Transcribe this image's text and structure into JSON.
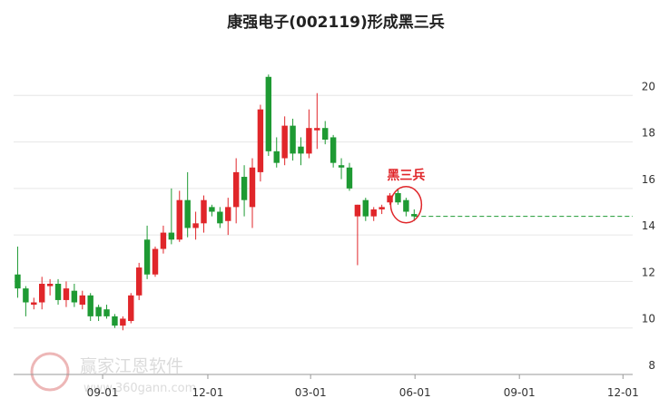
{
  "chart_data": {
    "type": "candlestick",
    "title": "康强电子(002119)形成黑三兵",
    "annotation": "黑三兵",
    "watermark": "赢家江恩软件",
    "watermark_url": "www.360gann.com",
    "up_color": "#e0262a",
    "down_color": "#1e9a33",
    "reference_line": 14.8,
    "open": [
      12.3,
      11.7,
      11.0,
      11.1,
      11.8,
      11.9,
      11.2,
      11.6,
      11.0,
      11.4,
      10.9,
      10.8,
      10.5,
      10.1,
      10.3,
      11.4,
      13.8,
      12.3,
      13.4,
      14.1,
      13.8,
      15.5,
      14.3,
      14.5,
      15.2,
      15.0,
      14.6,
      15.2,
      16.5,
      15.2,
      16.7,
      20.8,
      17.6,
      17.3,
      18.7,
      17.8,
      17.5,
      18.5,
      18.6,
      18.2,
      17.0,
      16.9,
      14.8,
      15.5,
      14.8,
      15.1,
      15.4,
      15.8,
      15.5,
      14.9
    ],
    "high": [
      13.5,
      11.8,
      11.3,
      12.2,
      12.1,
      12.1,
      12.0,
      11.9,
      11.6,
      11.5,
      11.0,
      11.0,
      10.6,
      10.5,
      11.5,
      12.8,
      14.4,
      13.5,
      14.4,
      16.0,
      15.9,
      16.7,
      15.0,
      15.7,
      15.3,
      15.2,
      15.6,
      17.3,
      17.0,
      17.3,
      19.6,
      20.9,
      18.2,
      19.1,
      19.0,
      18.2,
      19.4,
      20.1,
      18.9,
      18.3,
      17.3,
      17.1,
      15.3,
      15.6,
      15.2,
      15.3,
      15.8,
      16.0,
      15.6,
      15.1
    ],
    "low": [
      11.3,
      10.5,
      10.8,
      10.8,
      11.4,
      11.0,
      10.9,
      10.9,
      10.8,
      10.3,
      10.3,
      10.4,
      10.0,
      9.9,
      10.2,
      11.2,
      12.1,
      12.2,
      13.2,
      13.6,
      13.7,
      13.9,
      13.8,
      14.1,
      14.8,
      14.3,
      14.0,
      14.5,
      14.8,
      14.3,
      16.3,
      17.4,
      16.9,
      17.0,
      17.2,
      17.0,
      17.3,
      17.7,
      17.9,
      16.9,
      16.4,
      15.9,
      12.7,
      14.6,
      14.6,
      14.9,
      15.3,
      15.3,
      14.8,
      14.6
    ],
    "close": [
      11.7,
      11.1,
      11.1,
      11.9,
      11.9,
      11.2,
      11.7,
      11.1,
      11.4,
      10.5,
      10.5,
      10.5,
      10.1,
      10.4,
      11.4,
      12.6,
      12.3,
      13.4,
      14.1,
      13.8,
      15.5,
      14.3,
      14.5,
      15.5,
      15.0,
      14.5,
      15.2,
      16.7,
      15.5,
      16.9,
      19.4,
      17.6,
      17.1,
      18.7,
      17.5,
      17.5,
      18.6,
      18.6,
      18.1,
      17.1,
      16.9,
      16.0,
      15.3,
      14.8,
      15.1,
      15.2,
      15.7,
      15.4,
      15.0,
      14.8
    ],
    "xlim": [
      -0.5,
      76
    ],
    "xticks": [
      {
        "value": 10.5,
        "label": "09-01"
      },
      {
        "value": 23.5,
        "label": "12-01"
      },
      {
        "value": 36.2,
        "label": "03-01"
      },
      {
        "value": 49.1,
        "label": "06-01"
      },
      {
        "value": 62,
        "label": "09-01"
      },
      {
        "value": 74.8,
        "label": "12-01"
      }
    ],
    "ylim": [
      8,
      22
    ],
    "yticks": [
      8,
      10,
      12,
      14,
      16,
      18,
      20
    ],
    "grid": true
  }
}
